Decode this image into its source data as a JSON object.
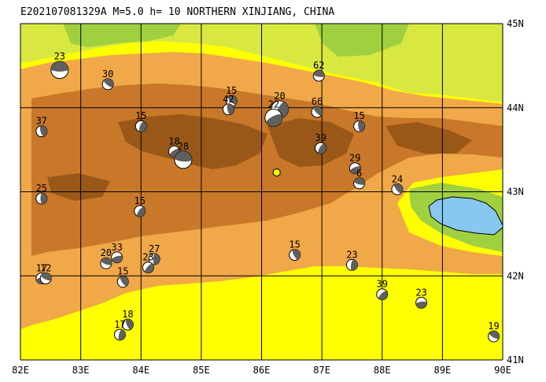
{
  "title": "E202107081329A M=5.0 h= 10 NORTHERN XINJIANG, CHINA",
  "map": {
    "lon_range": [
      82,
      90
    ],
    "lat_range": [
      41,
      45
    ],
    "lon_tick_labels": [
      "82E",
      "83E",
      "84E",
      "85E",
      "86E",
      "87E",
      "88E",
      "89E",
      "90E"
    ],
    "lat_tick_labels": [
      "45N",
      "44N",
      "43N",
      "42N",
      "41N"
    ],
    "colors": {
      "background": "#ffffff",
      "lowland": "#ffff00",
      "low_plain": "#d8e840",
      "green_plain": "#a0d040",
      "foothill": "#f0a848",
      "mountain": "#c87828",
      "high_mountain": "#9a5818",
      "lake": "#88c8f0",
      "grid": "#000000",
      "epicenter": "#ffff00"
    },
    "epicenter": {
      "lon": 86.25,
      "lat": 43.23
    },
    "events": [
      {
        "label": "23",
        "lon": 82.65,
        "lat": 44.45
      },
      {
        "label": "30",
        "lon": 83.45,
        "lat": 44.28
      },
      {
        "label": "37",
        "lon": 82.35,
        "lat": 43.72
      },
      {
        "label": "15",
        "lon": 84.0,
        "lat": 43.78
      },
      {
        "label": "18",
        "lon": 84.55,
        "lat": 43.48
      },
      {
        "label": "28",
        "lon": 84.7,
        "lat": 43.38
      },
      {
        "label": "15",
        "lon": 85.5,
        "lat": 44.08
      },
      {
        "label": "42",
        "lon": 85.45,
        "lat": 43.98
      },
      {
        "label": "20",
        "lon": 86.3,
        "lat": 43.98
      },
      {
        "label": "22",
        "lon": 86.2,
        "lat": 43.88
      },
      {
        "label": "62",
        "lon": 86.95,
        "lat": 44.38
      },
      {
        "label": "66",
        "lon": 86.92,
        "lat": 43.95
      },
      {
        "label": "15",
        "lon": 87.62,
        "lat": 43.78
      },
      {
        "label": "39",
        "lon": 86.98,
        "lat": 43.52
      },
      {
        "label": "29",
        "lon": 87.55,
        "lat": 43.28
      },
      {
        "label": "6",
        "lon": 87.62,
        "lat": 43.1
      },
      {
        "label": "24",
        "lon": 88.25,
        "lat": 43.03
      },
      {
        "label": "25",
        "lon": 82.35,
        "lat": 42.92
      },
      {
        "label": "15",
        "lon": 83.98,
        "lat": 42.77
      },
      {
        "label": "33",
        "lon": 83.6,
        "lat": 42.22
      },
      {
        "label": "20",
        "lon": 83.42,
        "lat": 42.15
      },
      {
        "label": "15",
        "lon": 83.7,
        "lat": 41.93
      },
      {
        "label": "27",
        "lon": 84.22,
        "lat": 42.2
      },
      {
        "label": "23",
        "lon": 84.12,
        "lat": 42.1
      },
      {
        "label": "17",
        "lon": 82.35,
        "lat": 41.97
      },
      {
        "label": "12",
        "lon": 82.42,
        "lat": 41.97
      },
      {
        "label": "15",
        "lon": 86.55,
        "lat": 42.25
      },
      {
        "label": "23",
        "lon": 87.5,
        "lat": 42.13
      },
      {
        "label": "39",
        "lon": 88.0,
        "lat": 41.78
      },
      {
        "label": "23",
        "lon": 88.65,
        "lat": 41.68
      },
      {
        "label": "19",
        "lon": 89.85,
        "lat": 41.28
      },
      {
        "label": "18",
        "lon": 83.78,
        "lat": 41.42
      },
      {
        "label": "17",
        "lon": 83.65,
        "lat": 41.3
      }
    ]
  }
}
